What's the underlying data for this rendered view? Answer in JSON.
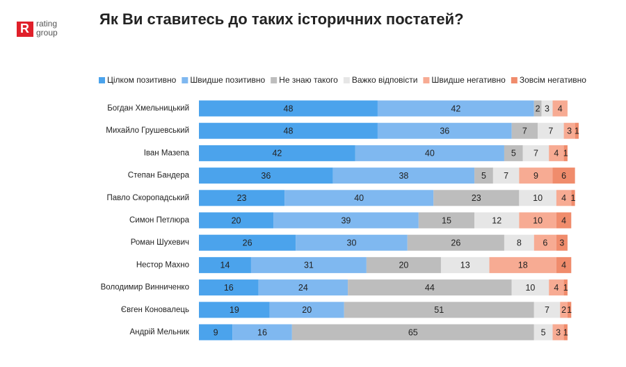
{
  "logo": [
    "rating",
    "group"
  ],
  "chart_data": {
    "type": "stacked-bar-horizontal",
    "title": "Як Ви ставитесь до таких історичних постатей?",
    "categories": [
      "Богдан Хмельницький",
      "Михайло Грушевський",
      "Іван Мазепа",
      "Степан Бандера",
      "Павло Скоропадський",
      "Симон Петлюра",
      "Роман Шухевич",
      "Нестор Махно",
      "Володимир Винниченко",
      "Євген Коновалець",
      "Андрій Мельник"
    ],
    "series": [
      {
        "name": "Цілком позитивно",
        "color": "#4ba3ec",
        "values": [
          48,
          48,
          42,
          36,
          23,
          20,
          26,
          14,
          16,
          19,
          9
        ]
      },
      {
        "name": "Швидше позитивно",
        "color": "#7fb8f0",
        "values": [
          42,
          36,
          40,
          38,
          40,
          39,
          30,
          31,
          24,
          20,
          16
        ]
      },
      {
        "name": "Не знаю такого",
        "color": "#bdbdbd",
        "values": [
          2,
          7,
          5,
          5,
          23,
          15,
          26,
          20,
          44,
          51,
          65
        ]
      },
      {
        "name": "Важко відповісти",
        "color": "#e6e6e6",
        "values": [
          3,
          7,
          7,
          7,
          10,
          12,
          8,
          13,
          10,
          7,
          5
        ]
      },
      {
        "name": "Швидше негативно",
        "color": "#f7ab93",
        "values": [
          4,
          3,
          4,
          9,
          4,
          10,
          6,
          18,
          4,
          2,
          3
        ]
      },
      {
        "name": "Зовсім негативно",
        "color": "#f08c6c",
        "values": [
          null,
          1,
          1,
          6,
          1,
          4,
          3,
          4,
          1,
          1,
          1
        ]
      }
    ],
    "legend": "top"
  }
}
